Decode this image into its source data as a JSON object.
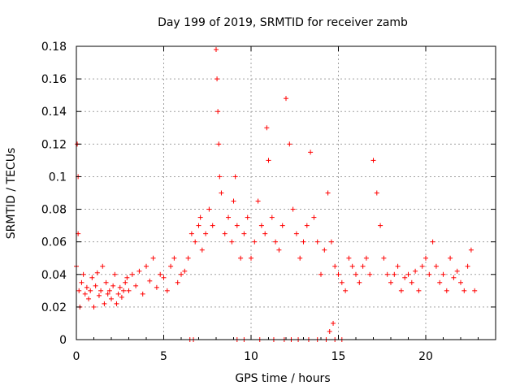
{
  "chart_data": {
    "type": "scatter",
    "title": "Day 199 of 2019, SRMTID for receiver zamb",
    "xlabel": "GPS time / hours",
    "ylabel": "SRMTID / TECUs",
    "xlim": [
      0,
      24
    ],
    "ylim": [
      0,
      0.18
    ],
    "xticks": [
      0,
      5,
      10,
      15,
      20
    ],
    "xtick_labels": [
      "0",
      "5",
      "10",
      "15",
      "20"
    ],
    "yticks": [
      0,
      0.02,
      0.04,
      0.06,
      0.08,
      0.1,
      0.12,
      0.14,
      0.16,
      0.18
    ],
    "ytick_labels": [
      "0",
      "0.02",
      "0.04",
      "0.06",
      "0.08",
      "0.1",
      "0.12",
      "0.14",
      "0.16",
      "0.18"
    ],
    "grid": true,
    "marker": "+",
    "color": "#ff0000",
    "series": [
      {
        "name": "SRMTID",
        "x": [
          0.0,
          0.05,
          0.1,
          0.1,
          0.15,
          0.2,
          0.3,
          0.4,
          0.5,
          0.6,
          0.7,
          0.8,
          0.9,
          1.0,
          1.1,
          1.2,
          1.3,
          1.4,
          1.5,
          1.6,
          1.7,
          1.8,
          1.9,
          2.0,
          2.1,
          2.2,
          2.3,
          2.4,
          2.5,
          2.6,
          2.7,
          2.8,
          2.9,
          3.0,
          3.2,
          3.4,
          3.6,
          3.8,
          4.0,
          4.2,
          4.4,
          4.6,
          4.8,
          5.0,
          5.2,
          5.4,
          5.6,
          5.8,
          6.0,
          6.2,
          6.4,
          6.6,
          6.8,
          7.0,
          7.1,
          7.2,
          7.4,
          7.6,
          7.8,
          8.0,
          8.05,
          8.1,
          8.15,
          8.2,
          8.3,
          8.5,
          8.7,
          8.9,
          9.0,
          9.1,
          9.2,
          9.4,
          9.6,
          9.8,
          10.0,
          10.2,
          10.4,
          10.6,
          10.8,
          10.9,
          11.0,
          11.2,
          11.4,
          11.6,
          11.8,
          12.0,
          12.2,
          12.4,
          12.6,
          12.8,
          13.0,
          13.2,
          13.4,
          13.6,
          13.8,
          14.0,
          14.2,
          14.4,
          14.6,
          14.8,
          15.0,
          15.2,
          15.4,
          15.6,
          15.8,
          16.0,
          16.2,
          16.4,
          16.6,
          16.8,
          17.0,
          17.2,
          17.4,
          17.6,
          17.8,
          18.0,
          18.2,
          18.4,
          18.6,
          18.8,
          19.0,
          19.2,
          19.4,
          19.6,
          19.8,
          20.0,
          20.2,
          20.4,
          20.6,
          20.8,
          21.0,
          21.2,
          21.4,
          21.6,
          21.8,
          22.0,
          22.2,
          22.4,
          22.6,
          22.8,
          6.5,
          6.7,
          9.2,
          9.6,
          10.5,
          11.3,
          11.9,
          12.3,
          12.7,
          13.3,
          13.8,
          14.3,
          14.8,
          15.2,
          14.5,
          14.7
        ],
        "y": [
          0.045,
          0.12,
          0.1,
          0.065,
          0.03,
          0.02,
          0.035,
          0.04,
          0.028,
          0.032,
          0.025,
          0.03,
          0.038,
          0.02,
          0.033,
          0.041,
          0.027,
          0.03,
          0.045,
          0.022,
          0.035,
          0.028,
          0.03,
          0.025,
          0.033,
          0.04,
          0.022,
          0.028,
          0.032,
          0.026,
          0.03,
          0.035,
          0.038,
          0.03,
          0.04,
          0.033,
          0.042,
          0.028,
          0.045,
          0.036,
          0.05,
          0.032,
          0.04,
          0.038,
          0.03,
          0.045,
          0.05,
          0.035,
          0.04,
          0.042,
          0.05,
          0.065,
          0.06,
          0.07,
          0.075,
          0.055,
          0.065,
          0.08,
          0.07,
          0.178,
          0.16,
          0.14,
          0.12,
          0.1,
          0.09,
          0.065,
          0.075,
          0.06,
          0.085,
          0.1,
          0.07,
          0.05,
          0.065,
          0.075,
          0.05,
          0.06,
          0.085,
          0.07,
          0.065,
          0.13,
          0.11,
          0.075,
          0.06,
          0.055,
          0.07,
          0.148,
          0.12,
          0.08,
          0.065,
          0.05,
          0.06,
          0.07,
          0.115,
          0.075,
          0.06,
          0.04,
          0.055,
          0.09,
          0.06,
          0.045,
          0.04,
          0.035,
          0.03,
          0.05,
          0.045,
          0.04,
          0.035,
          0.045,
          0.05,
          0.04,
          0.11,
          0.09,
          0.07,
          0.05,
          0.04,
          0.035,
          0.04,
          0.045,
          0.03,
          0.038,
          0.04,
          0.035,
          0.042,
          0.03,
          0.045,
          0.05,
          0.04,
          0.06,
          0.045,
          0.035,
          0.04,
          0.03,
          0.05,
          0.038,
          0.042,
          0.035,
          0.03,
          0.045,
          0.055,
          0.03,
          0.0,
          0.0,
          0.0,
          0.0,
          0.0,
          0.0,
          0.0,
          0.0,
          0.0,
          0.0,
          0.0,
          0.0,
          0.0,
          0.0,
          0.005,
          0.01
        ]
      }
    ]
  }
}
